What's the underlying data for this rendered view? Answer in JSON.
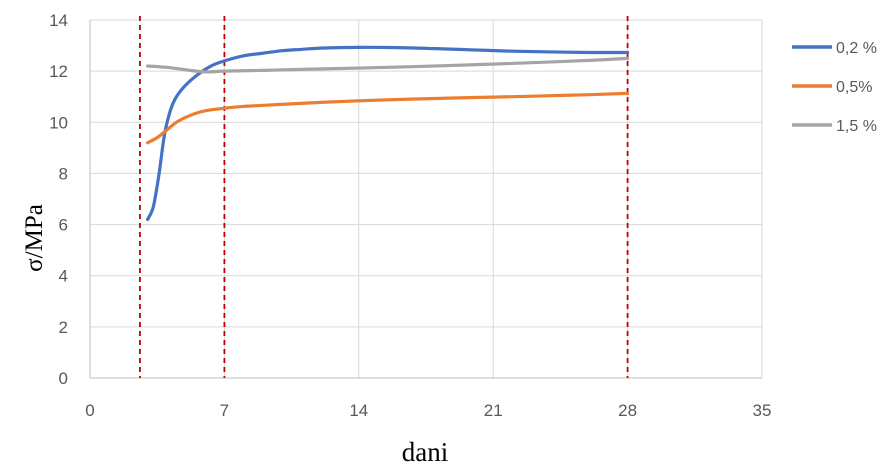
{
  "chart_data": {
    "type": "line",
    "title": "",
    "xlabel": "dani",
    "ylabel": "σ/MPa",
    "xlim": [
      0,
      35
    ],
    "ylim": [
      0,
      14
    ],
    "xticks": [
      0,
      7,
      14,
      21,
      28,
      35
    ],
    "yticks": [
      0,
      2,
      4,
      6,
      8,
      10,
      12,
      14
    ],
    "grid": true,
    "legend_position": "right",
    "vertical_reference_lines": {
      "x": [
        2.6,
        7,
        28
      ],
      "style": "dashed",
      "color": "#c00000"
    },
    "series": [
      {
        "name": "0,2 %",
        "color": "#4472c4",
        "x": [
          3,
          3.3,
          3.6,
          3.9,
          4.3,
          4.8,
          5.5,
          6.3,
          7,
          8,
          9,
          10,
          11,
          12,
          14,
          16,
          18,
          20,
          22,
          24,
          26,
          28
        ],
        "y": [
          6.2,
          6.7,
          8.0,
          9.6,
          10.7,
          11.3,
          11.8,
          12.2,
          12.4,
          12.6,
          12.7,
          12.8,
          12.85,
          12.9,
          12.93,
          12.92,
          12.88,
          12.83,
          12.78,
          12.75,
          12.73,
          12.73
        ]
      },
      {
        "name": "0,5%",
        "color": "#ed7d31",
        "x": [
          3,
          3.5,
          4,
          4.5,
          5,
          5.5,
          6,
          7,
          8,
          10,
          12,
          14,
          16,
          18,
          20,
          22,
          24,
          26,
          28
        ],
        "y": [
          9.2,
          9.4,
          9.7,
          10.0,
          10.2,
          10.35,
          10.45,
          10.55,
          10.62,
          10.7,
          10.78,
          10.84,
          10.89,
          10.93,
          10.97,
          11.0,
          11.04,
          11.08,
          11.13
        ]
      },
      {
        "name": "1,5 %",
        "color": "#a5a5a5",
        "x": [
          3,
          4,
          5,
          6,
          7,
          9,
          11,
          14,
          17,
          20,
          23,
          26,
          28
        ],
        "y": [
          12.2,
          12.15,
          12.05,
          11.97,
          12.0,
          12.03,
          12.07,
          12.12,
          12.18,
          12.25,
          12.33,
          12.42,
          12.5
        ]
      }
    ]
  }
}
